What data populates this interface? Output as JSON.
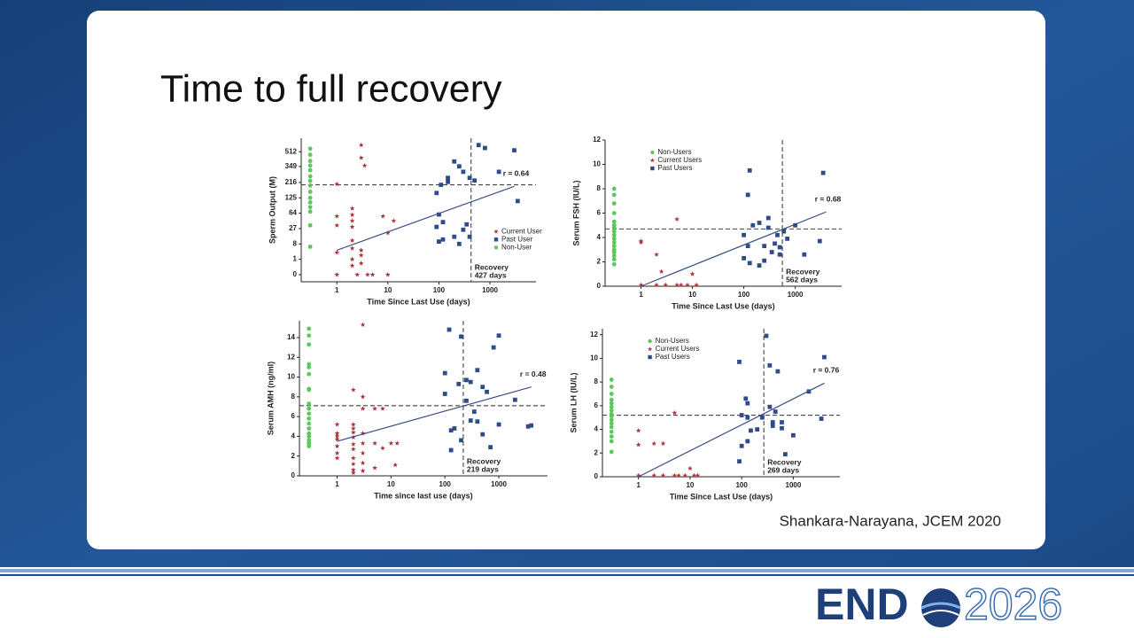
{
  "title": "Time to full recovery",
  "citation": "Shankara-Narayana, JCEM 2020",
  "logo": {
    "left": "END",
    "right": "2026"
  },
  "chart_data": [
    {
      "type": "scatter",
      "xlabel": "Time Since Last Use (days)",
      "ylabel": "Sperm Output (M)",
      "xlog": true,
      "yscale": "cbrt",
      "xlim": [
        0.2,
        8000
      ],
      "xticks": [
        1,
        10,
        100,
        1000
      ],
      "ylim": [
        -0.1,
        700
      ],
      "yticks": [
        0,
        1,
        8,
        27,
        64,
        125,
        216,
        349,
        512
      ],
      "legend": "right",
      "series": [
        {
          "name": "Current User",
          "color": "#b0303a",
          "marker": "star",
          "x": [
            1,
            1,
            1,
            1,
            1,
            2,
            2,
            2,
            2,
            2,
            2,
            2,
            2,
            3,
            3,
            3.5,
            3,
            3,
            3,
            2.5,
            4,
            5,
            10,
            8,
            10,
            13
          ],
          "y": [
            3,
            55,
            33,
            205,
            0,
            80,
            59,
            43,
            30,
            11,
            5,
            1,
            0.2,
            600,
            440,
            358,
            0.4,
            4,
            2,
            0,
            0,
            0,
            0,
            55,
            20,
            43
          ]
        },
        {
          "name": "Past User",
          "color": "#2f4b8a",
          "marker": "square",
          "x": [
            90,
            110,
            150,
            200,
            250,
            300,
            400,
            600,
            800,
            1500,
            3000,
            3500,
            100,
            120,
            90,
            100,
            120,
            200,
            250,
            300,
            350,
            400,
            150,
            500
          ],
          "y": [
            150,
            200,
            250,
            400,
            350,
            300,
            250,
            600,
            560,
            300,
            530,
            110,
            60,
            40,
            30,
            10,
            12,
            15,
            8,
            25,
            35,
            15,
            220,
            230
          ]
        },
        {
          "name": "Non-User",
          "color": "#5cc85c",
          "marker": "circle",
          "x": [
            0.3,
            0.3,
            0.3,
            0.3,
            0.3,
            0.3,
            0.3,
            0.3,
            0.3,
            0.3,
            0.3,
            0.3,
            0.3,
            0.3,
            0.3
          ],
          "y": [
            551,
            475,
            405,
            358,
            314,
            262,
            227,
            195,
            157,
            125,
            104,
            85,
            69,
            33,
            6
          ]
        }
      ],
      "fit": {
        "x": [
          1,
          3000
        ],
        "y": [
          4,
          190
        ]
      },
      "hline": 200,
      "vline": 427,
      "r_label": "r = 0.64",
      "recovery": [
        "Recovery",
        "427 days"
      ]
    },
    {
      "type": "scatter",
      "xlabel": "Time Since Last Use (days)",
      "ylabel": "Serum FSH (IU/L)",
      "xlog": true,
      "yscale": "linear",
      "xlim": [
        0.2,
        8000
      ],
      "xticks": [
        1,
        10,
        100,
        1000
      ],
      "ylim": [
        0,
        12
      ],
      "yticks": [
        0,
        2,
        4,
        6,
        8,
        10,
        12
      ],
      "legend": "upper left",
      "series": [
        {
          "name": "Non-Users",
          "color": "#5cc85c",
          "marker": "circle",
          "x": [
            0.3,
            0.3,
            0.3,
            0.3,
            0.3,
            0.3,
            0.3,
            0.3,
            0.3,
            0.3,
            0.3,
            0.3,
            0.3,
            0.3,
            0.3,
            0.3,
            0.3
          ],
          "y": [
            1.8,
            2.2,
            2.5,
            2.8,
            3.0,
            3.3,
            3.6,
            3.9,
            4.2,
            4.5,
            4.8,
            5.0,
            5.3,
            6.0,
            6.8,
            7.5,
            8.0
          ]
        },
        {
          "name": "Current Users",
          "color": "#b0303a",
          "marker": "star",
          "x": [
            1,
            1,
            1,
            2,
            2,
            2.5,
            3,
            5,
            5,
            6,
            8,
            10,
            12
          ],
          "y": [
            0.1,
            3.7,
            3.6,
            2.6,
            0.1,
            1.2,
            0.1,
            5.5,
            0.1,
            0.1,
            0.1,
            1.0,
            0.1
          ]
        },
        {
          "name": "Past Users",
          "color": "#2f4b8a",
          "marker": "square",
          "x": [
            100,
            100,
            120,
            130,
            120,
            150,
            200,
            200,
            250,
            300,
            300,
            350,
            400,
            450,
            500,
            500,
            600,
            700,
            1000,
            1500,
            3000,
            3500,
            130,
            250
          ],
          "y": [
            2.3,
            4.2,
            7.5,
            9.5,
            3.3,
            5.0,
            5.2,
            1.7,
            3.3,
            5.6,
            4.8,
            2.8,
            3.5,
            4.2,
            3.2,
            2.6,
            4.5,
            3.9,
            5.0,
            2.6,
            3.7,
            9.3,
            1.9,
            2.1
          ]
        }
      ],
      "fit": {
        "x": [
          1,
          4000
        ],
        "y": [
          0,
          6.1
        ]
      },
      "hline": 4.7,
      "vline": 562,
      "r_label": "r = 0.68",
      "recovery": [
        "Recovery",
        "562 days"
      ]
    },
    {
      "type": "scatter",
      "xlabel": "Time since last use (days)",
      "ylabel": "Serum AMH (ng/ml)",
      "xlog": true,
      "yscale": "linear",
      "xlim": [
        0.2,
        8000
      ],
      "xticks": [
        1,
        10,
        100,
        1000
      ],
      "ylim": [
        0,
        15.7
      ],
      "yticks": [
        0,
        2,
        4,
        6,
        8,
        10,
        12,
        14
      ],
      "series": [
        {
          "color": "#5cc85c",
          "marker": "circle",
          "x": [
            0.3,
            0.3,
            0.3,
            0.3,
            0.3,
            0.3,
            0.3,
            0.3,
            0.3,
            0.3,
            0.3,
            0.3,
            0.3,
            0.3,
            0.3,
            0.3,
            0.3,
            0.3,
            0.3
          ],
          "y": [
            3.0,
            3.3,
            3.6,
            4.0,
            4.3,
            4.8,
            5.3,
            5.8,
            6.3,
            6.8,
            7.3,
            8.7,
            8.8,
            10.3,
            11.0,
            11.3,
            13.3,
            14.2,
            14.9
          ]
        },
        {
          "color": "#b0303a",
          "marker": "star",
          "x": [
            1,
            1,
            1,
            1,
            1,
            1,
            1,
            2,
            2,
            2,
            2,
            2,
            2,
            2,
            2,
            2,
            2,
            2,
            3,
            3,
            3,
            3,
            3,
            3,
            3,
            3,
            5,
            5,
            5,
            7,
            7,
            10,
            12,
            13
          ],
          "y": [
            5.2,
            4.3,
            4.0,
            3.7,
            3.0,
            2.3,
            1.8,
            8.7,
            5.2,
            4.8,
            4.4,
            3.9,
            3.2,
            2.7,
            1.8,
            1.2,
            0.6,
            0.3,
            15.3,
            8.0,
            6.8,
            4.3,
            3.3,
            2.3,
            1.3,
            0.5,
            6.8,
            3.3,
            0.8,
            6.8,
            2.8,
            3.3,
            1.1,
            3.3
          ]
        },
        {
          "color": "#2f4b8a",
          "marker": "square",
          "x": [
            100,
            100,
            120,
            130,
            130,
            150,
            180,
            200,
            200,
            250,
            300,
            300,
            350,
            400,
            400,
            500,
            500,
            600,
            700,
            800,
            1000,
            1000,
            2000,
            3500,
            4000,
            250
          ],
          "y": [
            10.4,
            8.3,
            14.8,
            4.6,
            2.6,
            4.8,
            9.3,
            14.1,
            3.6,
            9.7,
            9.5,
            5.6,
            6.5,
            5.5,
            10.7,
            9.0,
            4.2,
            8.5,
            2.9,
            13.0,
            14.2,
            5.2,
            7.7,
            5.0,
            5.1,
            7.6
          ]
        }
      ],
      "fit": {
        "x": [
          1,
          4000
        ],
        "y": [
          3.5,
          9.0
        ]
      },
      "hline": 7.1,
      "vline": 219,
      "r_label": "r = 0.48",
      "recovery": [
        "Recovery",
        "219 days"
      ]
    },
    {
      "type": "scatter",
      "xlabel": "Time Since Last Use (days)",
      "ylabel": "Serum LH (IU/L)",
      "xlog": true,
      "yscale": "linear",
      "xlim": [
        0.2,
        8000
      ],
      "xticks": [
        1,
        10,
        100,
        1000
      ],
      "ylim": [
        0,
        12.5
      ],
      "yticks": [
        0,
        2,
        4,
        6,
        8,
        10,
        12
      ],
      "legend": "upper left",
      "series": [
        {
          "name": "Non-Users",
          "color": "#5cc85c",
          "marker": "circle",
          "x": [
            0.3,
            0.3,
            0.3,
            0.3,
            0.3,
            0.3,
            0.3,
            0.3,
            0.3,
            0.3,
            0.3,
            0.3,
            0.3,
            0.3,
            0.3,
            0.3
          ],
          "y": [
            2.1,
            3.0,
            3.4,
            3.8,
            4.2,
            4.5,
            4.8,
            5.1,
            5.3,
            5.6,
            5.9,
            6.2,
            6.5,
            7.0,
            7.6,
            8.2
          ]
        },
        {
          "name": "Current Users",
          "color": "#b0303a",
          "marker": "star",
          "x": [
            1,
            1,
            1,
            2,
            2,
            3,
            3,
            5,
            5,
            6,
            8,
            10,
            12,
            14
          ],
          "y": [
            3.9,
            2.7,
            0.1,
            2.8,
            0.1,
            2.8,
            0.1,
            5.4,
            0.1,
            0.1,
            0.1,
            0.7,
            0.1,
            0.1
          ]
        },
        {
          "name": "Past Users",
          "color": "#2f4b8a",
          "marker": "square",
          "x": [
            90,
            90,
            100,
            100,
            120,
            130,
            130,
            130,
            150,
            200,
            250,
            300,
            350,
            350,
            400,
            400,
            450,
            500,
            600,
            600,
            700,
            1000,
            2000,
            3500,
            4000
          ],
          "y": [
            9.7,
            1.3,
            2.6,
            5.2,
            6.6,
            6.2,
            5.0,
            3.0,
            3.9,
            4.0,
            5.0,
            11.9,
            9.4,
            5.9,
            4.6,
            4.3,
            5.5,
            8.9,
            4.6,
            4.1,
            1.9,
            3.5,
            7.2,
            4.9,
            10.1
          ]
        }
      ],
      "fit": {
        "x": [
          1,
          4000
        ],
        "y": [
          0,
          7.9
        ]
      },
      "hline": 5.2,
      "vline": 269,
      "r_label": "r = 0.76",
      "recovery": [
        "Recovery",
        "269 days"
      ]
    }
  ]
}
